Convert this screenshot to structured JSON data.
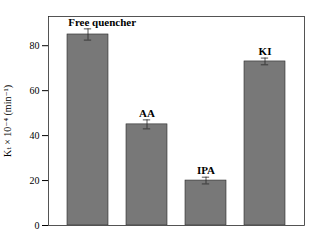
{
  "chart_data": {
    "type": "bar",
    "categories": [
      "Free quencher",
      "AA",
      "IPA",
      "KI"
    ],
    "values": [
      85,
      45,
      20,
      73
    ],
    "errors": [
      2.5,
      2,
      1.5,
      1.5
    ],
    "color": "#787878",
    "ylabel": "Kₜ × 10⁻⁴ (min⁻¹)",
    "ylim": [
      0,
      93
    ],
    "yticks": [
      0,
      20,
      40,
      60,
      80
    ],
    "tick_labels": "y"
  }
}
